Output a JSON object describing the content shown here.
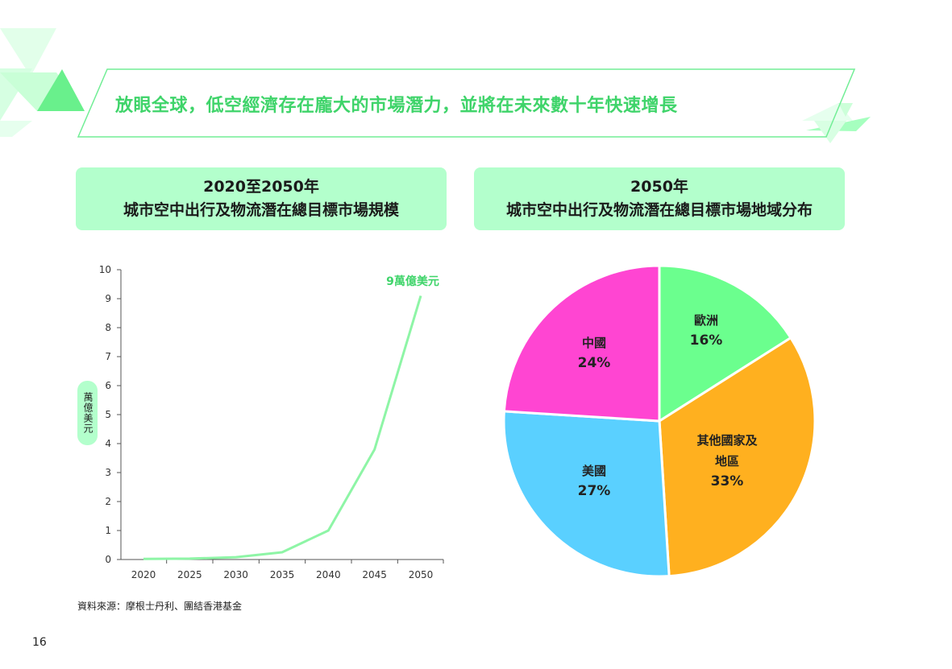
{
  "page": {
    "banner_title": "放眼全球，低空經濟存在龐大的市場潛力，並將在未來數十年快速增長",
    "page_number": "16",
    "source": "資料來源：摩根士丹利、團結香港基金",
    "colors": {
      "brand_green": "#3fd46a",
      "header_bg": "#b3ffcc",
      "line": "#8ef5a6"
    }
  },
  "left_header": {
    "line1": "2020至2050年",
    "line2": "城市空中出行及物流潛在總目標市場規模"
  },
  "right_header": {
    "line1": "2050年",
    "line2": "城市空中出行及物流潛在總目標市場地域分布"
  },
  "chart_data": [
    {
      "type": "line",
      "x": [
        2020,
        2025,
        2030,
        2035,
        2040,
        2045,
        2050
      ],
      "series": [
        {
          "values": [
            0.02,
            0.03,
            0.08,
            0.25,
            1.0,
            3.8,
            9.1
          ],
          "color": "#8ef5a6"
        }
      ],
      "ylabel": "萬億美元",
      "ylim": [
        0,
        10
      ],
      "yticks": [
        0,
        1,
        2,
        3,
        4,
        5,
        6,
        7,
        8,
        9,
        10
      ],
      "annotation": {
        "text": "9萬億美元",
        "x": 2050,
        "color": "#3fd46a"
      },
      "grid": false
    },
    {
      "type": "pie",
      "slices": [
        {
          "label": "歐洲",
          "value": 16,
          "display": "16%",
          "color": "#6bff8e"
        },
        {
          "label": "其他國家及地區",
          "label_lines": [
            "其他國家及",
            "地區"
          ],
          "value": 33,
          "display": "33%",
          "color": "#ffb01f"
        },
        {
          "label": "美國",
          "value": 27,
          "display": "27%",
          "color": "#5ad0ff"
        },
        {
          "label": "中國",
          "value": 24,
          "display": "24%",
          "color": "#ff45d2"
        }
      ]
    }
  ]
}
